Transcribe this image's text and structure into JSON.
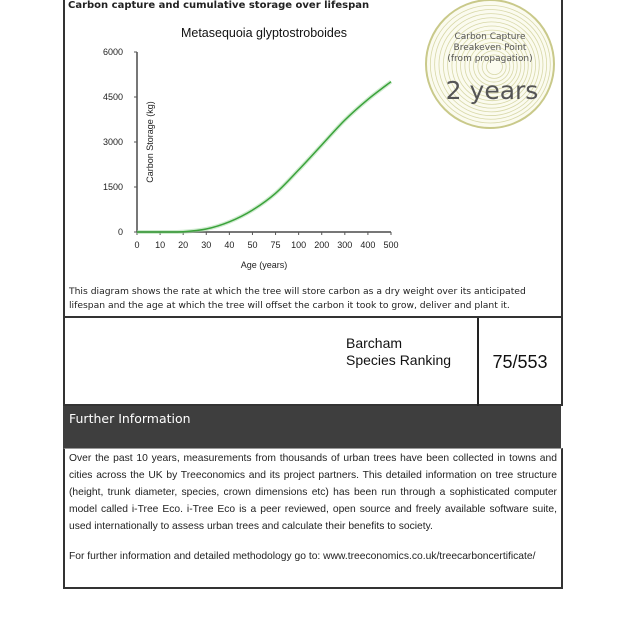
{
  "section_title": "Carbon capture and cumulative storage over lifespan",
  "chart_data": {
    "type": "line",
    "title": "Metasequoia glyptostroboides",
    "xlabel": "Age (years)",
    "ylabel": "Carbon Storage (kg)",
    "x_scale": "categorical (unevenly spaced age ticks)",
    "categories": [
      "0",
      "10",
      "20",
      "30",
      "40",
      "50",
      "75",
      "100",
      "200",
      "300",
      "400",
      "500"
    ],
    "values": [
      0,
      0,
      10,
      100,
      340,
      730,
      1290,
      2070,
      2900,
      3730,
      4420,
      5010
    ],
    "yticks": [
      "0",
      "1500",
      "3000",
      "4500",
      "6000"
    ],
    "ylim": [
      0,
      6000
    ],
    "grid": false,
    "line_color": "#3aa23a"
  },
  "description": "This diagram shows the rate at which the tree will store carbon as a dry weight over its anticipated lifespan and the age at which the tree will offset the carbon it took to grow, deliver and plant it.",
  "badge": {
    "line1": "Carbon Capture",
    "line2": "Breakeven Point",
    "line3": "(from propagation)",
    "value": "2 years",
    "color": "#c9c98a"
  },
  "ranking": {
    "label_line1": "Barcham",
    "label_line2": "Species Ranking",
    "value": "75/553"
  },
  "further": {
    "title": "Further Information",
    "body": "Over the past 10 years, measurements from thousands of urban trees have been collected in towns and cities across the UK by Treeconomics and its project partners. This detailed information on tree structure (height, trunk diameter, species, crown dimensions etc) has been run through a sophisticated computer model called i-Tree Eco. i-Tree Eco is a peer reviewed, open source and freely available software suite, used internationally to assess urban trees and calculate their benefits to society.",
    "link_text": "For further information and detailed methodology go to: www.treeconomics.co.uk/treecarboncertificate/"
  }
}
